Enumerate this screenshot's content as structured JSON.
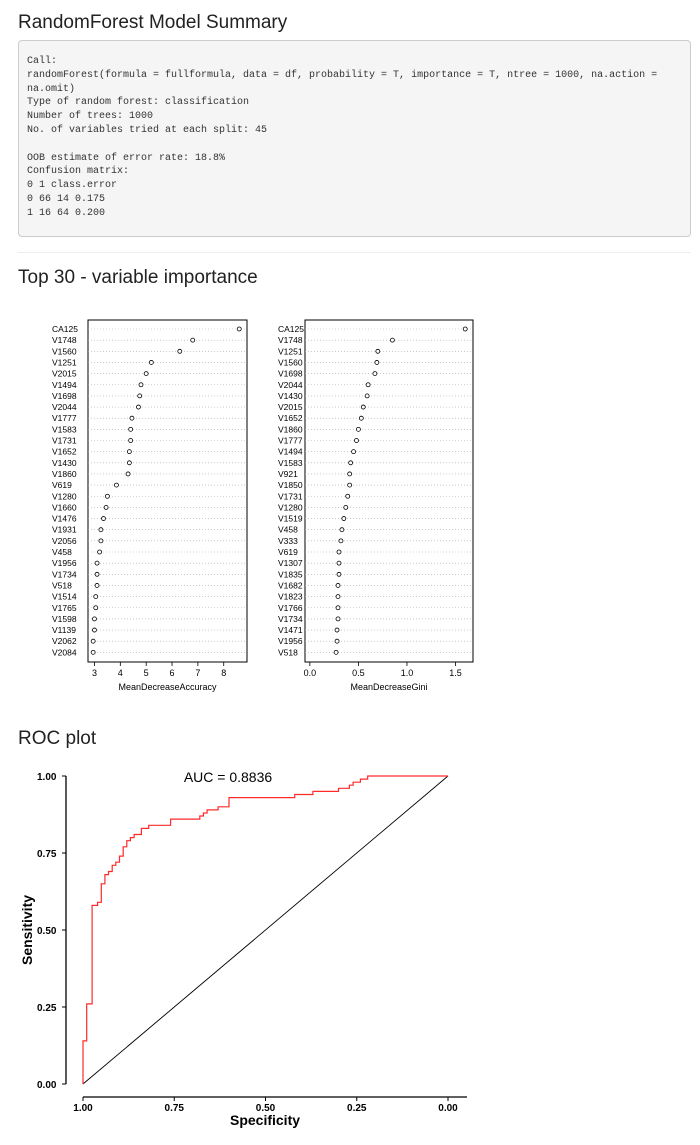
{
  "sections": {
    "summary_title": "RandomForest Model Summary",
    "importance_title": "Top 30 - variable importance",
    "roc_title": "ROC plot"
  },
  "summary_text": "Call:\nrandomForest(formula = fullformula, data = df, probability = T, importance = T, ntree = 1000, na.action = na.omit)\nType of random forest: classification\nNumber of trees: 1000\nNo. of variables tried at each split: 45\n\nOOB estimate of error rate: 18.8%\nConfusion matrix:\n0 1 class.error\n0 66 14 0.175\n1 16 64 0.200",
  "chart_data": [
    {
      "type": "scatter",
      "subtype": "dotchart",
      "xlabel": "MeanDecreaseAccuracy",
      "ylabel": "",
      "xlim": [
        2.75,
        8.9
      ],
      "xticks": [
        3,
        4,
        5,
        6,
        7,
        8
      ],
      "grid": "dotted horizontal",
      "categories": [
        "CA125",
        "V1748",
        "V1560",
        "V1251",
        "V2015",
        "V1494",
        "V1698",
        "V2044",
        "V1777",
        "V1583",
        "V1731",
        "V1652",
        "V1430",
        "V1860",
        "V619",
        "V1280",
        "V1660",
        "V1476",
        "V1931",
        "V2056",
        "V458",
        "V1956",
        "V1734",
        "V518",
        "V1514",
        "V1765",
        "V1598",
        "V1139",
        "V2062",
        "V2084"
      ],
      "values": [
        8.6,
        6.8,
        6.3,
        5.2,
        5.0,
        4.8,
        4.75,
        4.7,
        4.45,
        4.4,
        4.4,
        4.35,
        4.35,
        4.3,
        3.85,
        3.5,
        3.45,
        3.35,
        3.25,
        3.25,
        3.2,
        3.1,
        3.1,
        3.1,
        3.05,
        3.05,
        3.0,
        3.0,
        2.95,
        2.95
      ]
    },
    {
      "type": "scatter",
      "subtype": "dotchart",
      "xlabel": "MeanDecreaseGini",
      "ylabel": "",
      "xlim": [
        -0.05,
        1.68
      ],
      "xticks": [
        0.0,
        0.5,
        1.0,
        1.5
      ],
      "grid": "dotted horizontal",
      "categories": [
        "CA125",
        "V1748",
        "V1251",
        "V1560",
        "V1698",
        "V2044",
        "V1430",
        "V2015",
        "V1652",
        "V1860",
        "V1777",
        "V1494",
        "V1583",
        "V921",
        "V1850",
        "V1731",
        "V1280",
        "V1519",
        "V458",
        "V333",
        "V619",
        "V1307",
        "V1835",
        "V1682",
        "V1823",
        "V1766",
        "V1734",
        "V1471",
        "V1956",
        "V518"
      ],
      "values": [
        1.6,
        0.85,
        0.7,
        0.69,
        0.67,
        0.6,
        0.59,
        0.55,
        0.53,
        0.5,
        0.48,
        0.45,
        0.42,
        0.41,
        0.41,
        0.39,
        0.37,
        0.35,
        0.33,
        0.32,
        0.3,
        0.3,
        0.3,
        0.29,
        0.29,
        0.29,
        0.29,
        0.28,
        0.28,
        0.27
      ]
    },
    {
      "type": "line",
      "title": "",
      "annotation": "AUC = 0.8836",
      "xlabel": "Specificity",
      "ylabel": "Sensitivity",
      "xlim": [
        1.0,
        0.0
      ],
      "ylim": [
        0.0,
        1.0
      ],
      "xticks": [
        "1.00",
        "0.75",
        "0.50",
        "0.25",
        "0.00"
      ],
      "yticks": [
        "0.00",
        "0.25",
        "0.50",
        "0.75",
        "1.00"
      ],
      "colors": {
        "roc": "#ff2a2a",
        "diagonal": "#000000"
      },
      "series": [
        {
          "x": [
            1.0,
            1.0,
            0.99,
            0.99,
            0.975,
            0.975,
            0.97,
            0.97,
            0.96,
            0.96,
            0.95,
            0.95,
            0.94,
            0.94,
            0.93,
            0.93,
            0.92,
            0.92,
            0.91,
            0.91,
            0.9,
            0.9,
            0.89,
            0.89,
            0.88,
            0.88,
            0.87,
            0.87,
            0.86,
            0.86,
            0.84,
            0.84,
            0.82,
            0.82,
            0.76,
            0.76,
            0.68,
            0.68,
            0.67,
            0.67,
            0.66,
            0.66,
            0.63,
            0.63,
            0.6,
            0.6,
            0.42,
            0.42,
            0.37,
            0.37,
            0.3,
            0.3,
            0.27,
            0.27,
            0.26,
            0.26,
            0.24,
            0.24,
            0.22,
            0.22,
            0.01,
            0.0
          ],
          "y": [
            0.0,
            0.14,
            0.14,
            0.26,
            0.26,
            0.58,
            0.58,
            0.58,
            0.58,
            0.59,
            0.59,
            0.65,
            0.65,
            0.68,
            0.68,
            0.69,
            0.69,
            0.71,
            0.71,
            0.72,
            0.72,
            0.74,
            0.74,
            0.77,
            0.77,
            0.79,
            0.79,
            0.8,
            0.8,
            0.81,
            0.81,
            0.83,
            0.83,
            0.84,
            0.84,
            0.86,
            0.86,
            0.87,
            0.87,
            0.88,
            0.88,
            0.89,
            0.89,
            0.9,
            0.9,
            0.93,
            0.93,
            0.94,
            0.94,
            0.95,
            0.95,
            0.96,
            0.96,
            0.97,
            0.97,
            0.98,
            0.98,
            0.99,
            0.99,
            1.0,
            1.0,
            1.0
          ]
        }
      ]
    }
  ]
}
